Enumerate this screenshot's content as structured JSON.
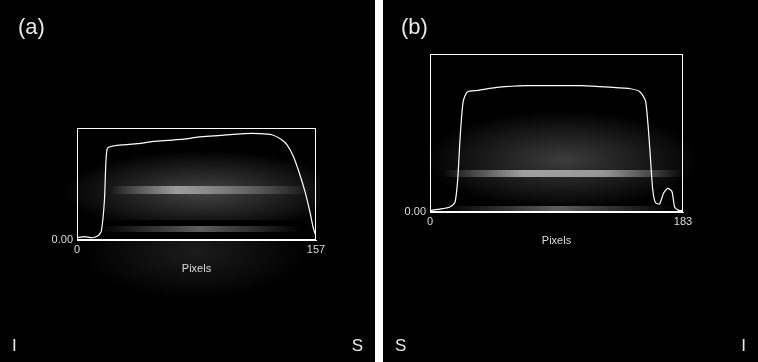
{
  "chart_data": [
    {
      "type": "line",
      "title": "(a)",
      "x_label": "Pixels",
      "color": "#ffffff",
      "grid": false,
      "annotations": [
        "I",
        "S"
      ],
      "xlim": [
        0,
        157
      ],
      "xticks": [
        0,
        157
      ],
      "ylim": [
        0,
        1
      ],
      "yticks": [
        {
          "value": 0,
          "label": "0.00"
        }
      ],
      "x": [
        0,
        5,
        10,
        14,
        16,
        18,
        19,
        20,
        24,
        30,
        40,
        50,
        60,
        70,
        80,
        90,
        100,
        110,
        120,
        128,
        134,
        138,
        142,
        146,
        150,
        153,
        155,
        157
      ],
      "values": [
        0.02,
        0.03,
        0.02,
        0.04,
        0.08,
        0.35,
        0.7,
        0.82,
        0.84,
        0.85,
        0.86,
        0.88,
        0.89,
        0.9,
        0.92,
        0.93,
        0.94,
        0.95,
        0.95,
        0.94,
        0.9,
        0.85,
        0.75,
        0.6,
        0.42,
        0.25,
        0.12,
        0.03
      ]
    },
    {
      "type": "line",
      "title": "(b)",
      "x_label": "Pixels",
      "color": "#ffffff",
      "grid": false,
      "annotations": [
        "S",
        "I"
      ],
      "xlim": [
        0,
        183
      ],
      "xticks": [
        0,
        183
      ],
      "ylim": [
        0,
        1
      ],
      "yticks": [
        {
          "value": 0,
          "label": "0.00"
        }
      ],
      "x": [
        0,
        8,
        14,
        18,
        20,
        22,
        24,
        27,
        35,
        50,
        70,
        90,
        110,
        130,
        145,
        152,
        156,
        159,
        161,
        163,
        166,
        169,
        172,
        175,
        177,
        180,
        183
      ],
      "values": [
        0.01,
        0.02,
        0.03,
        0.06,
        0.2,
        0.5,
        0.7,
        0.76,
        0.77,
        0.79,
        0.8,
        0.8,
        0.8,
        0.79,
        0.78,
        0.76,
        0.7,
        0.4,
        0.15,
        0.06,
        0.05,
        0.12,
        0.15,
        0.13,
        0.03,
        0.01,
        0.01
      ]
    }
  ]
}
